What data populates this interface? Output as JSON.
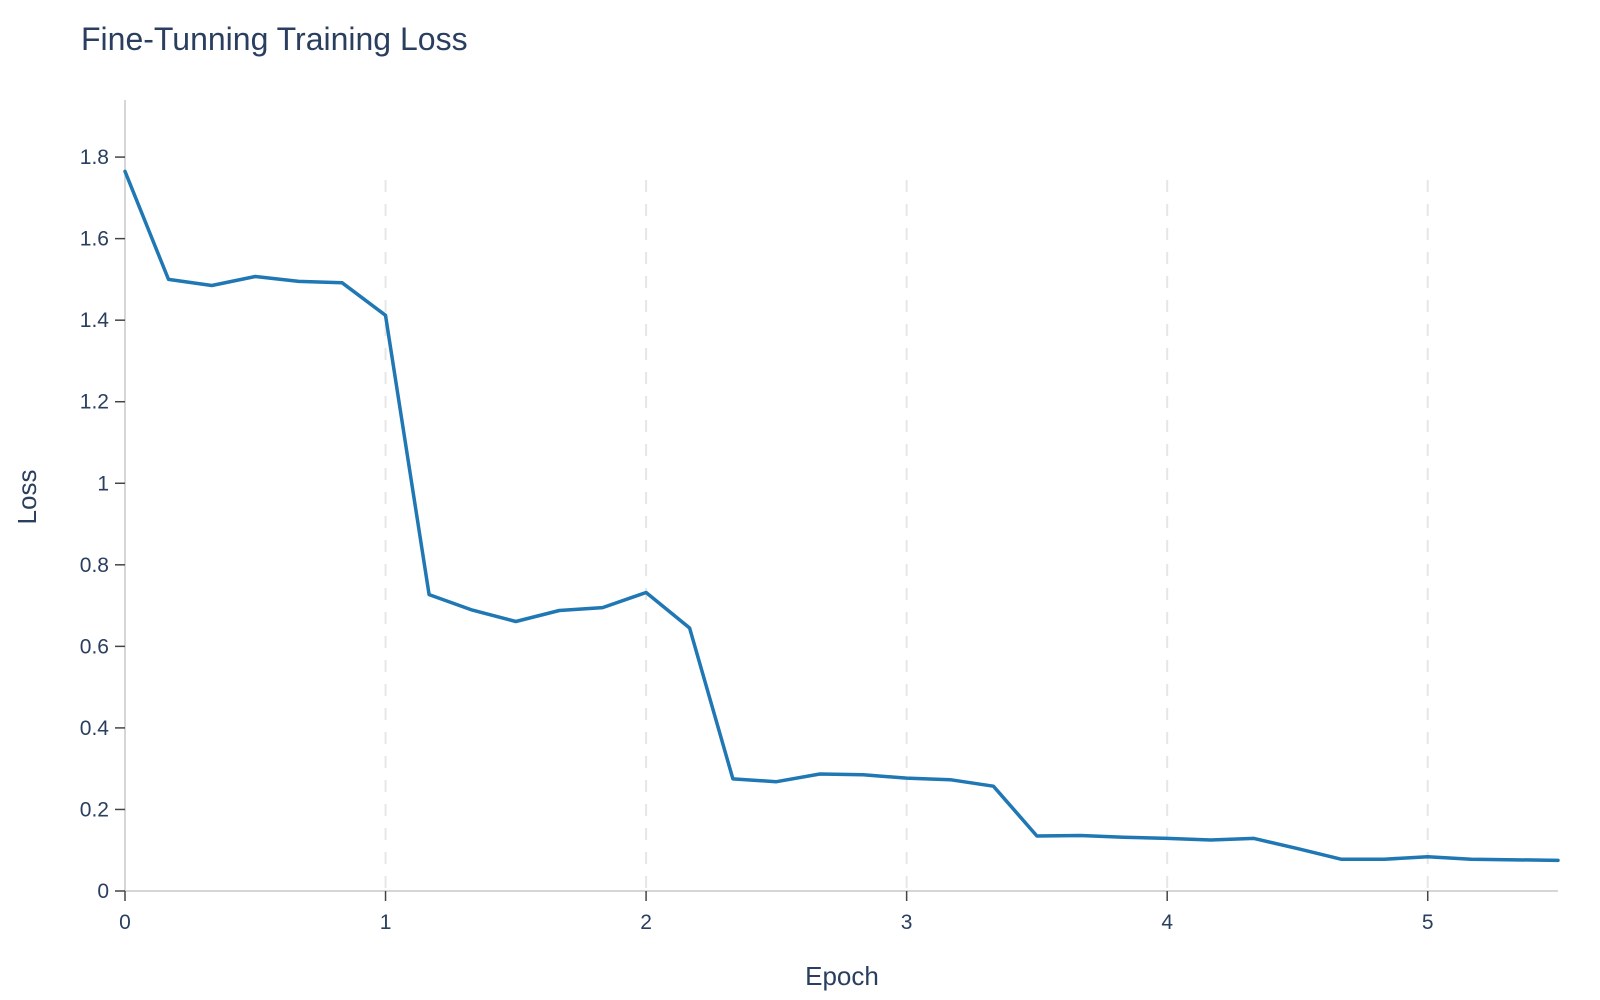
{
  "chart_data": {
    "type": "line",
    "title": "Fine-Tunning Training Loss",
    "xlabel": "Epoch",
    "ylabel": "Loss",
    "xlim": [
      0,
      5.5
    ],
    "ylim": [
      0,
      1.94
    ],
    "xticks": [
      0,
      1,
      2,
      3,
      4,
      5
    ],
    "xtick_labels": [
      "0",
      "1",
      "2",
      "3",
      "4",
      "5"
    ],
    "yticks": [
      0,
      0.2,
      0.4,
      0.6,
      0.8,
      1,
      1.2,
      1.4,
      1.6,
      1.8
    ],
    "ytick_labels": [
      "0",
      "0.2",
      "0.4",
      "0.6",
      "0.8",
      "1",
      "1.2",
      "1.4",
      "1.6",
      "1.8"
    ],
    "grid": "vertical dashed",
    "line_color": "#1f77b4",
    "series": [
      {
        "x": [
          0,
          0.167,
          0.333,
          0.5,
          0.667,
          0.833,
          1.0,
          1.167,
          1.333,
          1.5,
          1.667,
          1.833,
          2.0,
          2.167,
          2.333,
          2.5,
          2.667,
          2.833,
          3.0,
          3.167,
          3.333,
          3.5,
          3.667,
          3.833,
          4.0,
          4.167,
          4.333,
          4.5,
          4.667,
          4.833,
          5.0,
          5.167,
          5.5
        ],
        "y": [
          1.765,
          1.5,
          1.485,
          1.507,
          1.495,
          1.492,
          1.412,
          0.727,
          0.689,
          0.661,
          0.688,
          0.695,
          0.732,
          0.645,
          0.275,
          0.268,
          0.287,
          0.285,
          0.277,
          0.273,
          0.257,
          0.135,
          0.136,
          0.132,
          0.129,
          0.125,
          0.129,
          0.104,
          0.078,
          0.078,
          0.084,
          0.078,
          0.075
        ]
      }
    ]
  }
}
